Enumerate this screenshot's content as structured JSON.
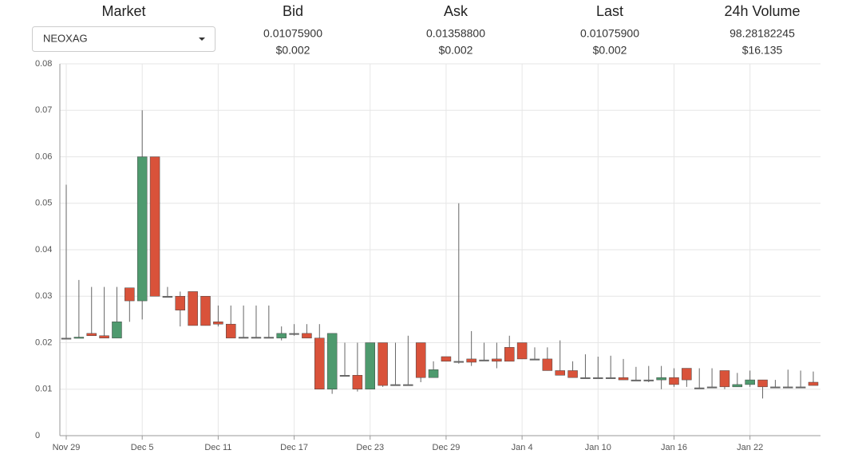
{
  "header": {
    "market": {
      "label": "Market",
      "selected": "NEOXAG"
    },
    "columns": [
      {
        "label": "Bid",
        "value": "0.01075900",
        "usd": "$0.002"
      },
      {
        "label": "Ask",
        "value": "0.01358800",
        "usd": "$0.002"
      },
      {
        "label": "Last",
        "value": "0.01075900",
        "usd": "$0.002"
      },
      {
        "label": "24h Volume",
        "value": "98.28182245",
        "usd": "$16.135"
      }
    ]
  },
  "chart_data": {
    "type": "candlestick",
    "up_color": "#4e9a6e",
    "down_color": "#d9523a",
    "grid": true,
    "ylim": [
      0,
      0.08
    ],
    "yticks": [
      0,
      0.01,
      0.02,
      0.03,
      0.04,
      0.05,
      0.06,
      0.07,
      0.08
    ],
    "categories": [
      "Nov 29",
      null,
      null,
      null,
      null,
      null,
      "Dec 5",
      null,
      null,
      null,
      null,
      null,
      "Dec 11",
      null,
      null,
      null,
      null,
      null,
      "Dec 17",
      null,
      null,
      null,
      null,
      null,
      "Dec 23",
      null,
      null,
      null,
      null,
      null,
      "Dec 29",
      null,
      null,
      null,
      null,
      null,
      "Jan 4",
      null,
      null,
      null,
      null,
      null,
      "Jan 10",
      null,
      null,
      null,
      null,
      null,
      "Jan 16",
      null,
      null,
      null,
      null,
      null,
      "Jan 22",
      null,
      null,
      null,
      null,
      null
    ],
    "open": [
      0.021,
      0.021,
      0.022,
      0.0215,
      0.021,
      0.0318,
      0.029,
      0.06,
      0.03,
      0.03,
      0.031,
      0.03,
      0.0245,
      0.024,
      0.0212,
      0.0212,
      0.0212,
      0.021,
      0.022,
      0.022,
      0.021,
      0.01,
      0.013,
      0.013,
      0.01,
      0.02,
      0.011,
      0.011,
      0.02,
      0.0125,
      0.017,
      0.016,
      0.0165,
      0.0163,
      0.0165,
      0.019,
      0.02,
      0.0165,
      0.0165,
      0.014,
      0.014,
      0.0125,
      0.0125,
      0.0125,
      0.0125,
      0.012,
      0.012,
      0.012,
      0.0125,
      0.0145,
      0.0103,
      0.0105,
      0.014,
      0.0105,
      0.011,
      0.012,
      0.0105,
      0.0105,
      0.0105,
      0.0115
    ],
    "high": [
      0.054,
      0.0335,
      0.032,
      0.032,
      0.032,
      0.0318,
      0.07,
      0.06,
      0.032,
      0.031,
      0.031,
      0.03,
      0.028,
      0.028,
      0.028,
      0.028,
      0.028,
      0.0235,
      0.024,
      0.024,
      0.024,
      0.022,
      0.02,
      0.02,
      0.02,
      0.02,
      0.02,
      0.0215,
      0.02,
      0.016,
      0.017,
      0.05,
      0.0225,
      0.02,
      0.02,
      0.0215,
      0.02,
      0.019,
      0.019,
      0.0205,
      0.016,
      0.0175,
      0.017,
      0.0172,
      0.0165,
      0.0148,
      0.015,
      0.015,
      0.0145,
      0.0145,
      0.0145,
      0.0145,
      0.014,
      0.0135,
      0.014,
      0.012,
      0.012,
      0.0142,
      0.014,
      0.0138
    ],
    "low": [
      0.021,
      0.021,
      0.0215,
      0.021,
      0.021,
      0.0245,
      0.025,
      0.03,
      0.03,
      0.0235,
      0.0237,
      0.0237,
      0.0235,
      0.021,
      0.021,
      0.021,
      0.021,
      0.0205,
      0.0215,
      0.021,
      0.01,
      0.009,
      0.013,
      0.0095,
      0.01,
      0.0105,
      0.011,
      0.011,
      0.0115,
      0.0125,
      0.016,
      0.0155,
      0.015,
      0.0163,
      0.0145,
      0.016,
      0.0165,
      0.0165,
      0.014,
      0.013,
      0.0125,
      0.0125,
      0.0125,
      0.0125,
      0.012,
      0.012,
      0.0115,
      0.01,
      0.0105,
      0.0105,
      0.0103,
      0.0105,
      0.01,
      0.0105,
      0.0105,
      0.008,
      0.0105,
      0.0105,
      0.0105,
      0.0108
    ],
    "close": [
      0.021,
      0.0212,
      0.0215,
      0.021,
      0.0245,
      0.029,
      0.06,
      0.03,
      0.03,
      0.027,
      0.0237,
      0.0237,
      0.024,
      0.021,
      0.0212,
      0.0212,
      0.0212,
      0.022,
      0.022,
      0.021,
      0.01,
      0.022,
      0.013,
      0.01,
      0.02,
      0.0108,
      0.011,
      0.011,
      0.0125,
      0.0142,
      0.016,
      0.016,
      0.0158,
      0.0163,
      0.016,
      0.016,
      0.0165,
      0.0165,
      0.014,
      0.013,
      0.0125,
      0.0125,
      0.0125,
      0.0125,
      0.012,
      0.012,
      0.012,
      0.0125,
      0.011,
      0.012,
      0.0103,
      0.0105,
      0.0105,
      0.011,
      0.012,
      0.0105,
      0.0105,
      0.0105,
      0.0105,
      0.0108
    ]
  }
}
